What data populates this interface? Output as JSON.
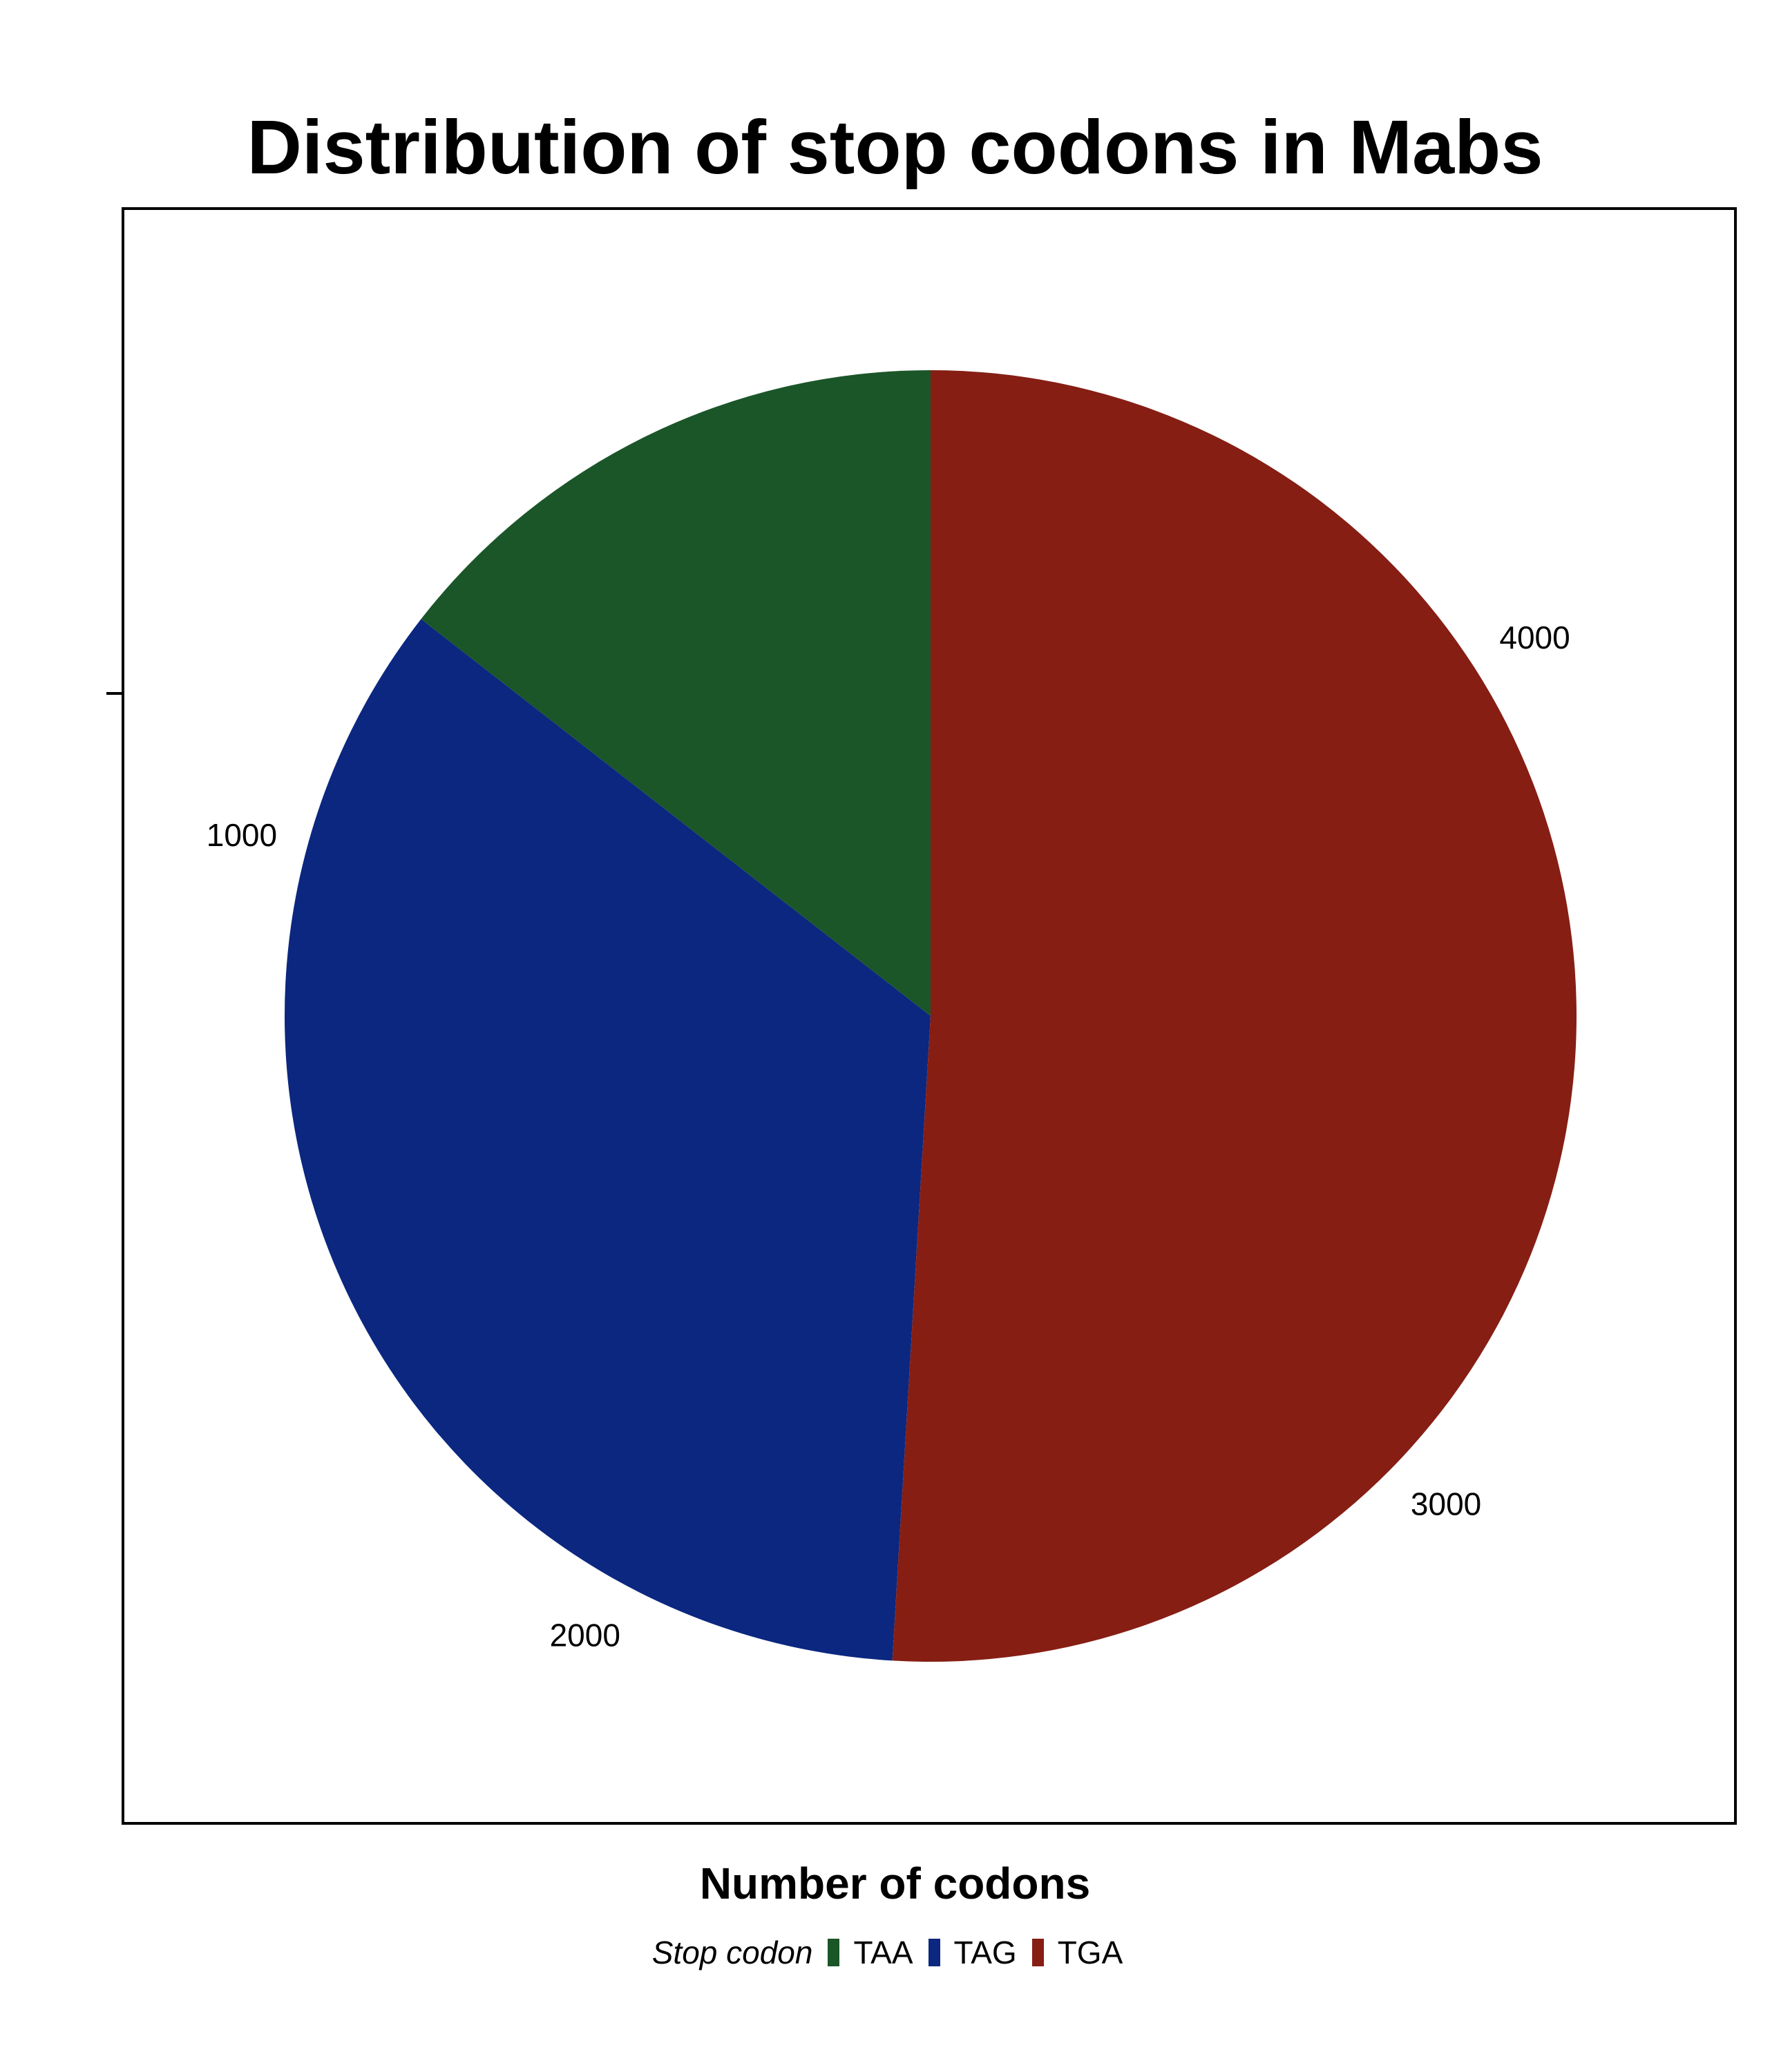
{
  "chart_data": {
    "type": "pie",
    "title": "Distribution of stop codons in Mabs",
    "xlabel": "Number of codons",
    "ylabel": "",
    "legend_title": "Stop codon",
    "legend_position": "bottom",
    "categories": [
      "TAA",
      "TAG",
      "TGA"
    ],
    "values": [
      690,
      1650,
      2430
    ],
    "colors": [
      "#1b5629",
      "#0b2780",
      "#861e14"
    ],
    "start_angle": "12 o'clock, counter-clockwise",
    "tick_labels": [
      "1000",
      "2000",
      "3000",
      "4000"
    ],
    "tick_values": [
      1000,
      2000,
      3000,
      4000
    ],
    "total": 4770
  }
}
